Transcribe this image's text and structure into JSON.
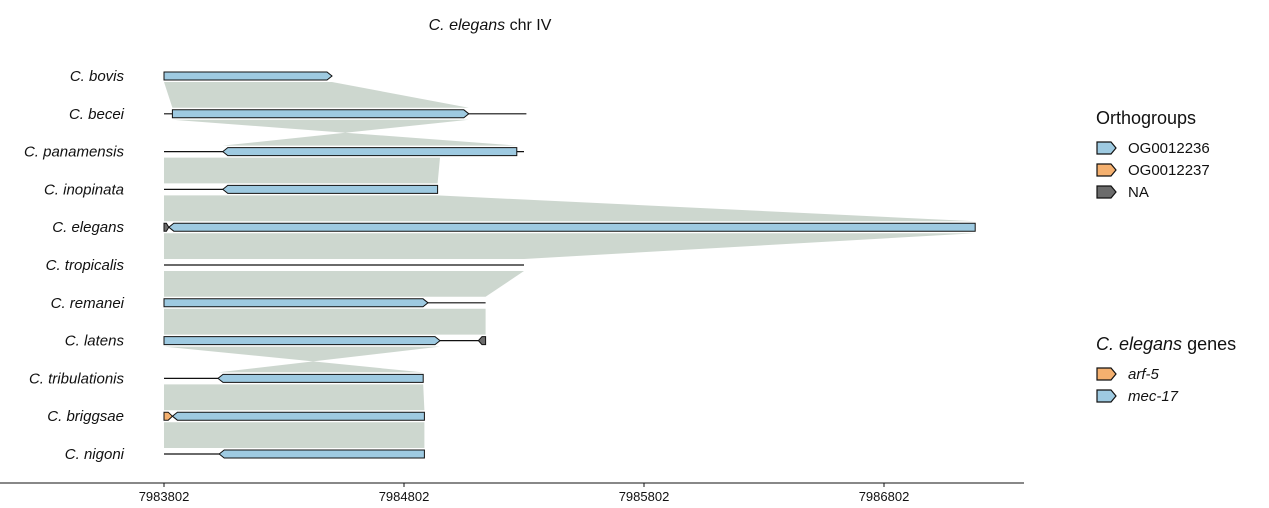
{
  "chart_data": {
    "type": "gene-synteny",
    "title_italic": "C. elegans",
    "title_rest": " chr IV",
    "x_ticks": [
      7983802,
      7984802,
      7985802,
      7986802
    ],
    "x_range": [
      7983802,
      7987400
    ],
    "tracks": [
      {
        "species": "C. bovis",
        "line": [
          0,
          700
        ],
        "genes": [
          {
            "start": 0,
            "end": 700,
            "strand": "+",
            "group": "OG0012236"
          }
        ]
      },
      {
        "species": "C. becei",
        "line": [
          0,
          1510
        ],
        "genes": [
          {
            "start": 35,
            "end": 1270,
            "strand": "+",
            "group": "OG0012236"
          }
        ]
      },
      {
        "species": "C. panamensis",
        "line": [
          0,
          1500
        ],
        "genes": [
          {
            "start": 245,
            "end": 1470,
            "strand": "-",
            "group": "OG0012236"
          }
        ]
      },
      {
        "species": "C. inopinata",
        "line": [
          0,
          1140
        ],
        "genes": [
          {
            "start": 245,
            "end": 1140,
            "strand": "-",
            "group": "OG0012236"
          }
        ]
      },
      {
        "species": "C. elegans",
        "line": [
          0,
          3380
        ],
        "genes": [
          {
            "start": 0,
            "end": 20,
            "strand": "+",
            "group": "NA"
          },
          {
            "start": 20,
            "end": 3380,
            "strand": "-",
            "group": "OG0012236"
          }
        ]
      },
      {
        "species": "C. tropicalis",
        "line": [
          0,
          1500
        ],
        "genes": []
      },
      {
        "species": "C. remanei",
        "line": [
          0,
          1340
        ],
        "genes": [
          {
            "start": 0,
            "end": 1100,
            "strand": "+",
            "group": "OG0012236"
          }
        ]
      },
      {
        "species": "C. latens",
        "line": [
          0,
          1340
        ],
        "genes": [
          {
            "start": 0,
            "end": 1150,
            "strand": "+",
            "group": "OG0012236"
          },
          {
            "start": 1310,
            "end": 1340,
            "strand": "-",
            "group": "NA"
          }
        ]
      },
      {
        "species": "C. tribulationis",
        "line": [
          0,
          1080
        ],
        "genes": [
          {
            "start": 225,
            "end": 1080,
            "strand": "-",
            "group": "OG0012236"
          }
        ]
      },
      {
        "species": "C. briggsae",
        "line": [
          0,
          1085
        ],
        "genes": [
          {
            "start": 0,
            "end": 35,
            "strand": "+",
            "group": "OG0012237"
          },
          {
            "start": 35,
            "end": 1085,
            "strand": "-",
            "group": "OG0012236"
          }
        ]
      },
      {
        "species": "C. nigoni",
        "line": [
          0,
          1085
        ],
        "genes": [
          {
            "start": 230,
            "end": 1085,
            "strand": "-",
            "group": "OG0012236"
          }
        ]
      }
    ],
    "links": [
      {
        "from": 0,
        "to": 1,
        "top": [
          0,
          700
        ],
        "bottom": [
          35,
          1270
        ],
        "inverted": false
      },
      {
        "from": 1,
        "to": 2,
        "top": [
          35,
          1270
        ],
        "bottom": [
          245,
          1470
        ],
        "inverted": true
      },
      {
        "from": 2,
        "to": 3,
        "top": [
          0,
          1150
        ],
        "bottom": [
          0,
          1140
        ],
        "inverted": false
      },
      {
        "from": 3,
        "to": 4,
        "top": [
          0,
          1140
        ],
        "bottom": [
          0,
          3380
        ],
        "inverted": false
      },
      {
        "from": 4,
        "to": 5,
        "top": [
          0,
          3380
        ],
        "bottom": [
          0,
          1500
        ],
        "inverted": false
      },
      {
        "from": 5,
        "to": 6,
        "top": [
          0,
          1500
        ],
        "bottom": [
          0,
          1340
        ],
        "inverted": false
      },
      {
        "from": 6,
        "to": 7,
        "top": [
          0,
          1340
        ],
        "bottom": [
          0,
          1340
        ],
        "inverted": false
      },
      {
        "from": 7,
        "to": 8,
        "top": [
          0,
          1150
        ],
        "bottom": [
          225,
          1080
        ],
        "inverted": true
      },
      {
        "from": 8,
        "to": 9,
        "top": [
          0,
          1080
        ],
        "bottom": [
          0,
          1085
        ],
        "inverted": false
      },
      {
        "from": 9,
        "to": 10,
        "top": [
          0,
          1085
        ],
        "bottom": [
          0,
          1085
        ],
        "inverted": false
      }
    ]
  },
  "legend_orthogroups": {
    "title": "Orthogroups",
    "items": [
      {
        "label": "OG0012236",
        "color": "#9ecae1"
      },
      {
        "label": "OG0012237",
        "color": "#f4b06f"
      },
      {
        "label": "NA",
        "color": "#6b6b6b"
      }
    ]
  },
  "legend_genes": {
    "title_italic": "C. elegans",
    "title_rest": " genes",
    "items": [
      {
        "label": "arf-5",
        "color": "#f4b06f"
      },
      {
        "label": "mec-17",
        "color": "#9ecae1"
      }
    ]
  },
  "colors": {
    "link": "#c8d3ca",
    "link_stripe": "#b5c2b8",
    "OG0012236": "#9ecae1",
    "OG0012237": "#f4b06f",
    "NA": "#6b6b6b"
  }
}
